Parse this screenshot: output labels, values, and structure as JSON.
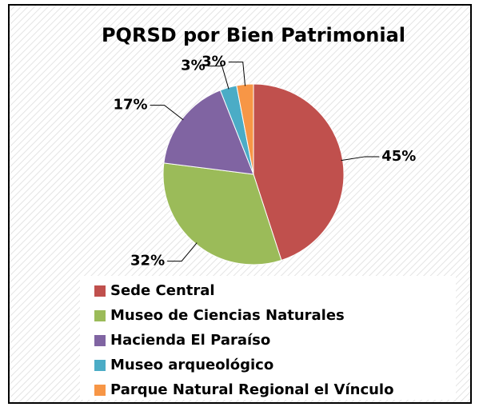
{
  "chart_data": {
    "type": "pie",
    "title": "PQRSD por Bien Patrimonial",
    "categories": [
      "Sede Central",
      "Museo de Ciencias Naturales",
      "Hacienda El Paraíso",
      "Museo arqueológico",
      "Parque Natural Regional el Vínculo"
    ],
    "values": [
      45,
      32,
      17,
      3,
      3
    ],
    "value_labels": [
      "45%",
      "32%",
      "17%",
      "3%",
      "3%"
    ],
    "colors": [
      "#c0504d",
      "#9bbb59",
      "#8064a2",
      "#4bacc6",
      "#f79646"
    ],
    "legend": "bottom"
  }
}
